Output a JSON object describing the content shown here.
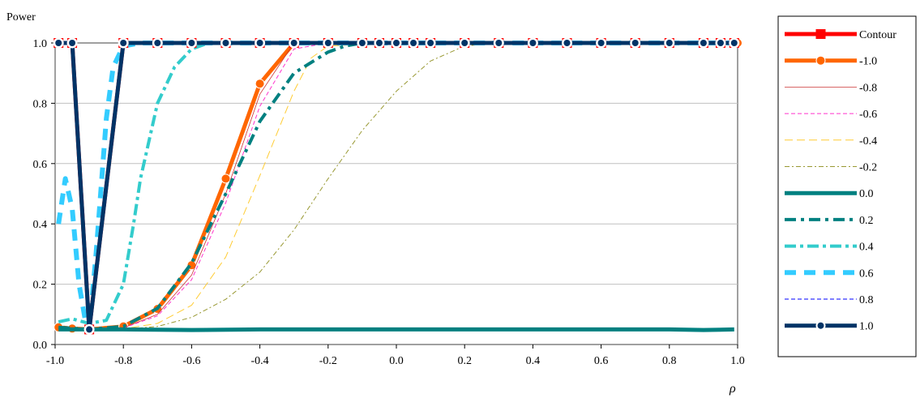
{
  "chart_data": {
    "type": "line",
    "ylabel": "Power",
    "xlabel": "ρ",
    "xlim": [
      -1.0,
      1.0
    ],
    "ylim": [
      0.0,
      1.0
    ],
    "x_ticks": [
      "-1.0",
      "-0.8",
      "-0.6",
      "-0.4",
      "-0.2",
      "0.0",
      "0.2",
      "0.4",
      "0.6",
      "0.8",
      "1.0"
    ],
    "y_ticks": [
      "0.0",
      "0.2",
      "0.4",
      "0.6",
      "0.8",
      "1.0"
    ],
    "grid": {
      "horizontal": true,
      "vertical": false
    },
    "legend_position": "right",
    "series": [
      {
        "name": "Contour",
        "color": "#ff0000",
        "style": "solid-square-markers",
        "x": [
          -0.99,
          -0.95,
          -0.9,
          -0.8,
          -0.7,
          -0.6,
          -0.5,
          -0.4,
          -0.3,
          -0.2,
          -0.1,
          -0.05,
          0.0,
          0.05,
          0.1,
          0.2,
          0.3,
          0.4,
          0.5,
          0.6,
          0.7,
          0.8,
          0.9,
          0.95,
          0.99
        ],
        "y": [
          1.0,
          1.0,
          0.05,
          1.0,
          1.0,
          1.0,
          1.0,
          1.0,
          1.0,
          1.0,
          1.0,
          1.0,
          1.0,
          1.0,
          1.0,
          1.0,
          1.0,
          1.0,
          1.0,
          1.0,
          1.0,
          1.0,
          1.0,
          1.0,
          1.0
        ]
      },
      {
        "name": "-1.0",
        "color": "#ff6600",
        "style": "solid-circle-markers",
        "x": [
          -0.99,
          -0.95,
          -0.9,
          -0.8,
          -0.7,
          -0.6,
          -0.5,
          -0.4,
          -0.3,
          -0.2,
          -0.1,
          0.0,
          0.1,
          0.2,
          0.4,
          0.6,
          0.8,
          1.0
        ],
        "y": [
          0.057,
          0.053,
          0.05,
          0.06,
          0.118,
          0.263,
          0.55,
          0.865,
          1.0,
          1.0,
          1.0,
          1.0,
          1.0,
          1.0,
          1.0,
          1.0,
          1.0,
          1.0
        ]
      },
      {
        "name": "-0.8",
        "color": "#cc3333",
        "style": "thin-solid",
        "x": [
          -0.99,
          -0.9,
          -0.8,
          -0.7,
          -0.6,
          -0.5,
          -0.4,
          -0.3,
          -0.2,
          0.0,
          0.5,
          1.0
        ],
        "y": [
          0.057,
          0.05,
          0.055,
          0.1,
          0.23,
          0.5,
          0.83,
          1.0,
          1.0,
          1.0,
          1.0,
          1.0
        ]
      },
      {
        "name": "-0.6",
        "color": "#ff33cc",
        "style": "dashed",
        "x": [
          -0.99,
          -0.9,
          -0.8,
          -0.7,
          -0.6,
          -0.5,
          -0.4,
          -0.3,
          -0.2,
          0.0,
          0.5,
          1.0
        ],
        "y": [
          0.057,
          0.05,
          0.055,
          0.095,
          0.215,
          0.47,
          0.79,
          0.98,
          1.0,
          1.0,
          1.0,
          1.0
        ]
      },
      {
        "name": "-0.4",
        "color": "#ffcc33",
        "style": "dash-long",
        "x": [
          -0.99,
          -0.9,
          -0.8,
          -0.7,
          -0.6,
          -0.5,
          -0.4,
          -0.3,
          -0.25,
          -0.2,
          0.0,
          0.5,
          1.0
        ],
        "y": [
          0.057,
          0.05,
          0.052,
          0.07,
          0.13,
          0.29,
          0.56,
          0.84,
          0.95,
          0.99,
          1.0,
          1.0,
          1.0
        ]
      },
      {
        "name": "-0.2",
        "color": "#999933",
        "style": "dash-dot",
        "x": [
          -0.99,
          -0.9,
          -0.8,
          -0.7,
          -0.6,
          -0.5,
          -0.4,
          -0.3,
          -0.2,
          -0.1,
          0.0,
          0.1,
          0.2,
          0.3,
          0.5,
          1.0
        ],
        "y": [
          0.057,
          0.05,
          0.05,
          0.06,
          0.09,
          0.15,
          0.24,
          0.38,
          0.55,
          0.71,
          0.84,
          0.94,
          0.99,
          1.0,
          1.0,
          1.0
        ]
      },
      {
        "name": "0.0",
        "color": "#008080",
        "style": "thick-solid",
        "x": [
          -0.99,
          -0.9,
          -0.8,
          -0.6,
          -0.4,
          -0.2,
          0.0,
          0.2,
          0.4,
          0.6,
          0.8,
          0.9,
          0.99
        ],
        "y": [
          0.05,
          0.05,
          0.05,
          0.048,
          0.05,
          0.05,
          0.05,
          0.05,
          0.05,
          0.05,
          0.05,
          0.048,
          0.05
        ]
      },
      {
        "name": "0.2",
        "color": "#008080",
        "style": "thick-dash",
        "x": [
          -0.99,
          -0.9,
          -0.8,
          -0.7,
          -0.6,
          -0.5,
          -0.4,
          -0.3,
          -0.2,
          -0.15,
          -0.1,
          0.0,
          0.5,
          1.0
        ],
        "y": [
          0.057,
          0.05,
          0.06,
          0.12,
          0.27,
          0.5,
          0.74,
          0.9,
          0.97,
          0.99,
          1.0,
          1.0,
          1.0,
          1.0
        ]
      },
      {
        "name": "0.4",
        "color": "#33cccc",
        "style": "thick-dash-dot",
        "x": [
          -0.99,
          -0.95,
          -0.9,
          -0.85,
          -0.8,
          -0.77,
          -0.75,
          -0.7,
          -0.65,
          -0.6,
          -0.55,
          -0.5,
          -0.3,
          0.0,
          0.5,
          1.0
        ],
        "y": [
          0.075,
          0.085,
          0.07,
          0.08,
          0.2,
          0.4,
          0.55,
          0.8,
          0.92,
          0.98,
          1.0,
          1.0,
          1.0,
          1.0,
          1.0,
          1.0
        ]
      },
      {
        "name": "0.6",
        "color": "#33ccff",
        "style": "thick-dash-wide",
        "x": [
          -0.99,
          -0.97,
          -0.95,
          -0.93,
          -0.91,
          -0.9,
          -0.88,
          -0.85,
          -0.83,
          -0.8,
          -0.75,
          -0.5,
          0.0,
          0.5,
          1.0
        ],
        "y": [
          0.4,
          0.55,
          0.45,
          0.2,
          0.07,
          0.05,
          0.3,
          0.75,
          0.92,
          0.99,
          1.0,
          1.0,
          1.0,
          1.0,
          1.0
        ]
      },
      {
        "name": "0.8",
        "color": "#0000ff",
        "style": "dashed",
        "x": [
          -0.99,
          -0.95,
          -0.9,
          -0.85,
          -0.8,
          -0.5,
          0.0,
          0.5,
          1.0
        ],
        "y": [
          1.0,
          1.0,
          0.05,
          0.55,
          1.0,
          1.0,
          1.0,
          1.0,
          1.0
        ]
      },
      {
        "name": "1.0",
        "color": "#003366",
        "style": "thick-circle-markers",
        "x": [
          -0.99,
          -0.95,
          -0.9,
          -0.8,
          -0.7,
          -0.6,
          -0.5,
          -0.4,
          -0.3,
          -0.2,
          -0.1,
          -0.05,
          0.0,
          0.05,
          0.1,
          0.2,
          0.3,
          0.4,
          0.5,
          0.6,
          0.7,
          0.8,
          0.9,
          0.95,
          0.99
        ],
        "y": [
          1.0,
          1.0,
          0.05,
          1.0,
          1.0,
          1.0,
          1.0,
          1.0,
          1.0,
          1.0,
          1.0,
          1.0,
          1.0,
          1.0,
          1.0,
          1.0,
          1.0,
          1.0,
          1.0,
          1.0,
          1.0,
          1.0,
          1.0,
          1.0,
          1.0
        ]
      }
    ]
  }
}
